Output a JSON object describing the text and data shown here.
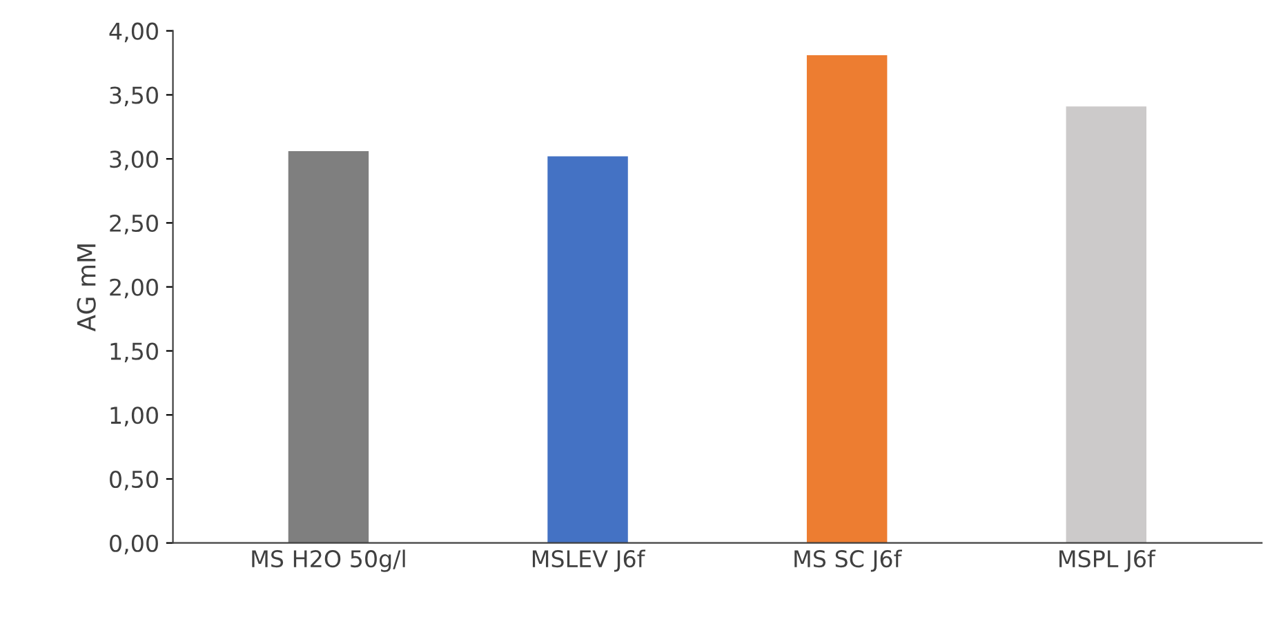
{
  "chart_data": {
    "type": "bar",
    "ylabel": "AG mM",
    "categories": [
      "MS H2O 50g/l",
      "MSLEV J6f",
      "MS SC J6f",
      "MSPL J6f"
    ],
    "values": [
      3.06,
      3.02,
      3.81,
      3.41
    ],
    "colors": [
      "#7f7f7f",
      "#4472c4",
      "#ed7d31",
      "#cccaca"
    ],
    "ylim": [
      0,
      4
    ],
    "yticks": [
      {
        "value": 0,
        "label": "0,00"
      },
      {
        "value": 0.5,
        "label": "0,50"
      },
      {
        "value": 1,
        "label": "1,00"
      },
      {
        "value": 1.5,
        "label": "1,50"
      },
      {
        "value": 2,
        "label": "2,00"
      },
      {
        "value": 2.5,
        "label": "2,50"
      },
      {
        "value": 3,
        "label": "3,00"
      },
      {
        "value": 3.5,
        "label": "3,50"
      },
      {
        "value": 4,
        "label": "4,00"
      }
    ],
    "grid": false,
    "legend": false
  }
}
